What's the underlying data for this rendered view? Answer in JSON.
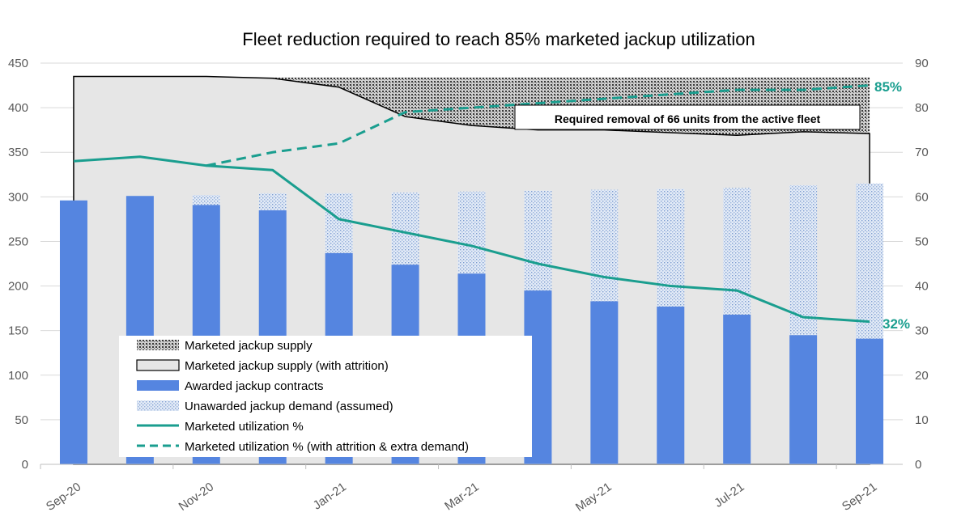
{
  "chart_data": {
    "type": "bar",
    "title": "Fleet reduction required to reach 85% marketed jackup utilization",
    "categories": [
      "Sep-20",
      "Oct-20",
      "Nov-20",
      "Dec-20",
      "Jan-21",
      "Feb-21",
      "Mar-21",
      "Apr-21",
      "May-21",
      "Jun-21",
      "Jul-21",
      "Aug-21",
      "Sep-21"
    ],
    "x_tick_labels": [
      "Sep-20",
      "Nov-20",
      "Jan-21",
      "Mar-21",
      "May-21",
      "Jul-21",
      "Sep-21"
    ],
    "left_axis": {
      "min": 0,
      "max": 450,
      "step": 50,
      "ticks": [
        "0",
        "50",
        "100",
        "150",
        "200",
        "250",
        "300",
        "350",
        "400",
        "450"
      ]
    },
    "right_axis": {
      "min": 0,
      "max": 90,
      "step": 10,
      "ticks": [
        "0",
        "10",
        "20",
        "30",
        "40",
        "50",
        "60",
        "70",
        "80",
        "90"
      ]
    },
    "series": [
      {
        "name": "Marketed jackup supply",
        "type": "area",
        "axis": "left",
        "values": [
          435,
          435,
          435,
          434,
          434,
          434,
          434,
          434,
          434,
          434,
          434,
          434,
          434
        ]
      },
      {
        "name": "Marketed jackup supply (with attrition)",
        "type": "area",
        "axis": "left",
        "values": [
          435,
          435,
          435,
          433,
          423,
          390,
          380,
          375,
          375,
          372,
          369,
          373,
          371
        ]
      },
      {
        "name": "Awarded jackup contracts",
        "type": "bar-stacked",
        "axis": "left",
        "values": [
          296,
          301,
          291,
          285,
          237,
          224,
          214,
          195,
          183,
          177,
          168,
          145,
          141
        ]
      },
      {
        "name": "Unawarded jackup demand (assumed)",
        "type": "bar-stacked",
        "axis": "left",
        "values": [
          0,
          0,
          11,
          19,
          67,
          81,
          92,
          112,
          125,
          132,
          142,
          168,
          174
        ]
      },
      {
        "name": "Marketed utilization %",
        "type": "line",
        "axis": "right",
        "values": [
          68,
          69,
          67,
          66,
          55,
          52,
          49,
          45,
          42,
          40,
          39,
          33,
          32
        ]
      },
      {
        "name": "Marketed utilization % (with attrition & extra demand)",
        "type": "line-dashed",
        "axis": "right",
        "values": [
          null,
          null,
          67,
          70,
          72,
          79,
          80,
          81,
          82,
          83,
          84,
          84,
          85
        ]
      }
    ],
    "annotations": {
      "removal_box": "Required removal of 66 units from the active fleet",
      "end_label_dashed": "85%",
      "end_label_solid": "32%"
    },
    "colors": {
      "awarded": "#5585e0",
      "unawarded_bg": "#dfe8f5",
      "unawarded_dot": "#8ea9d6",
      "attrition_fill": "#e6e6e6",
      "supply_pattern_bg": "#d0d0d0",
      "supply_pattern_dot": "#3a3a3a",
      "utilization": "#1a9e8f"
    }
  }
}
